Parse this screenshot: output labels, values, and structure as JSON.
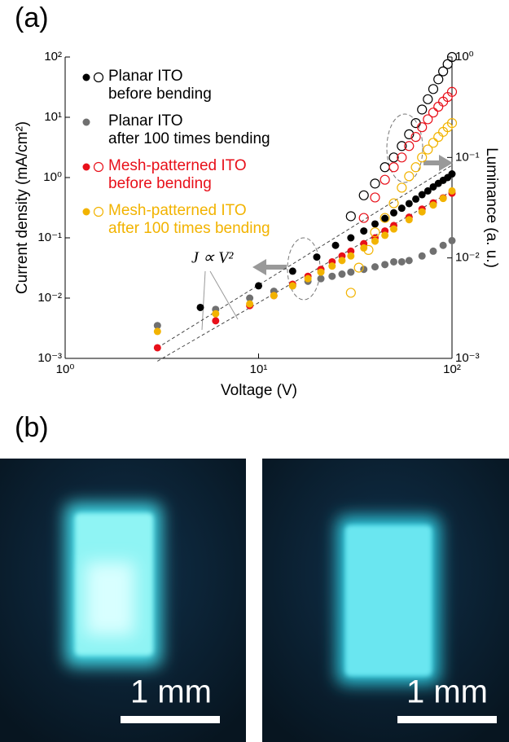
{
  "panel_labels": [
    "(a)",
    "(b)"
  ],
  "chart_data": {
    "type": "scatter",
    "log_scale": true,
    "xlabel": "Voltage (V)",
    "ylabel": "Current density (mA/cm²)",
    "y2label": "Luminance (a. u.)",
    "xlim": [
      1,
      100
    ],
    "xticks": [
      {
        "value": 1,
        "label": "10⁰"
      },
      {
        "value": 10,
        "label": "10¹"
      },
      {
        "value": 100,
        "label": "10²"
      }
    ],
    "ylim": [
      0.001,
      100
    ],
    "yticks": [
      {
        "value": 0.001,
        "label": "10⁻³"
      },
      {
        "value": 0.01,
        "label": "10⁻²"
      },
      {
        "value": 0.1,
        "label": "10⁻¹"
      },
      {
        "value": 1,
        "label": "10⁰"
      },
      {
        "value": 10,
        "label": "10¹"
      },
      {
        "value": 100,
        "label": "10²"
      }
    ],
    "y2lim": [
      0.001,
      1
    ],
    "y2ticks": [
      {
        "value": 0.001,
        "label": "10⁻³"
      },
      {
        "value": 0.01,
        "label": "10⁻²"
      },
      {
        "value": 0.1,
        "label": "10⁻¹"
      },
      {
        "value": 1,
        "label": "10⁰"
      }
    ],
    "series": [
      {
        "name": "Planar ITO\nbefore bending",
        "color": "#000000",
        "x": [
          5,
          10,
          15,
          20,
          25,
          30,
          35,
          40,
          45,
          50,
          55,
          60,
          65,
          70,
          75,
          80,
          85,
          90,
          95,
          100
        ],
        "values": [
          0.007,
          0.016,
          0.028,
          0.048,
          0.075,
          0.1,
          0.13,
          0.17,
          0.21,
          0.26,
          0.31,
          0.37,
          0.44,
          0.52,
          0.6,
          0.7,
          0.8,
          0.9,
          1.0,
          1.15
        ],
        "y2_x": [
          30,
          35,
          40,
          45,
          50,
          55,
          60,
          65,
          70,
          75,
          80,
          85,
          90,
          95,
          100
        ],
        "y2_values": [
          0.026,
          0.042,
          0.055,
          0.08,
          0.1,
          0.13,
          0.17,
          0.22,
          0.3,
          0.38,
          0.48,
          0.6,
          0.72,
          0.85,
          1.0
        ]
      },
      {
        "name": "Planar ITO\nafter 100 times bending",
        "color": "#707070",
        "x": [
          3,
          6,
          9,
          12,
          15,
          18,
          21,
          24,
          27,
          30,
          35,
          40,
          45,
          50,
          55,
          60,
          70,
          80,
          90,
          100
        ],
        "values": [
          0.0035,
          0.0065,
          0.01,
          0.013,
          0.016,
          0.019,
          0.021,
          0.023,
          0.025,
          0.027,
          0.03,
          0.033,
          0.036,
          0.04,
          0.04,
          0.042,
          0.05,
          0.06,
          0.075,
          0.09
        ]
      },
      {
        "name": "Mesh-patterned ITO\nbefore bending",
        "color": "#e8101a",
        "x": [
          3,
          6,
          9,
          12,
          15,
          18,
          21,
          24,
          27,
          30,
          35,
          40,
          45,
          50,
          60,
          70,
          80,
          90,
          100
        ],
        "values": [
          0.0015,
          0.0042,
          0.0075,
          0.011,
          0.017,
          0.023,
          0.03,
          0.04,
          0.05,
          0.06,
          0.08,
          0.1,
          0.13,
          0.16,
          0.22,
          0.3,
          0.38,
          0.46,
          0.55
        ],
        "y2_x": [
          35,
          40,
          45,
          50,
          55,
          60,
          65,
          70,
          75,
          80,
          85,
          90,
          95,
          100
        ],
        "y2_values": [
          0.025,
          0.04,
          0.06,
          0.08,
          0.1,
          0.13,
          0.16,
          0.2,
          0.24,
          0.28,
          0.32,
          0.36,
          0.4,
          0.45
        ]
      },
      {
        "name": "Mesh-patterned ITO\nafter 100 times bending",
        "color": "#f2b300",
        "x": [
          3,
          6,
          9,
          12,
          15,
          18,
          21,
          24,
          27,
          30,
          35,
          40,
          45,
          50,
          60,
          70,
          80,
          90,
          100
        ],
        "values": [
          0.0028,
          0.0055,
          0.008,
          0.011,
          0.016,
          0.021,
          0.027,
          0.034,
          0.042,
          0.05,
          0.068,
          0.088,
          0.11,
          0.14,
          0.2,
          0.27,
          0.35,
          0.45,
          0.6
        ],
        "y2_x": [
          30,
          33,
          37,
          40,
          45,
          50,
          55,
          60,
          65,
          70,
          75,
          80,
          85,
          90,
          95,
          100
        ],
        "y2_values": [
          0.0045,
          0.008,
          0.012,
          0.018,
          0.025,
          0.035,
          0.05,
          0.065,
          0.08,
          0.1,
          0.12,
          0.14,
          0.16,
          0.18,
          0.2,
          0.22
        ]
      }
    ],
    "reference_lines": [
      {
        "x": [
          3,
          100
        ],
        "values": [
          0.0015,
          1.6
        ]
      },
      {
        "x": [
          3,
          100
        ],
        "values": [
          0.0009,
          0.6
        ]
      }
    ],
    "annotation": "J ∝ V²"
  },
  "photos": [
    {
      "scale_bar": "1 mm"
    },
    {
      "scale_bar": "1 mm"
    }
  ]
}
